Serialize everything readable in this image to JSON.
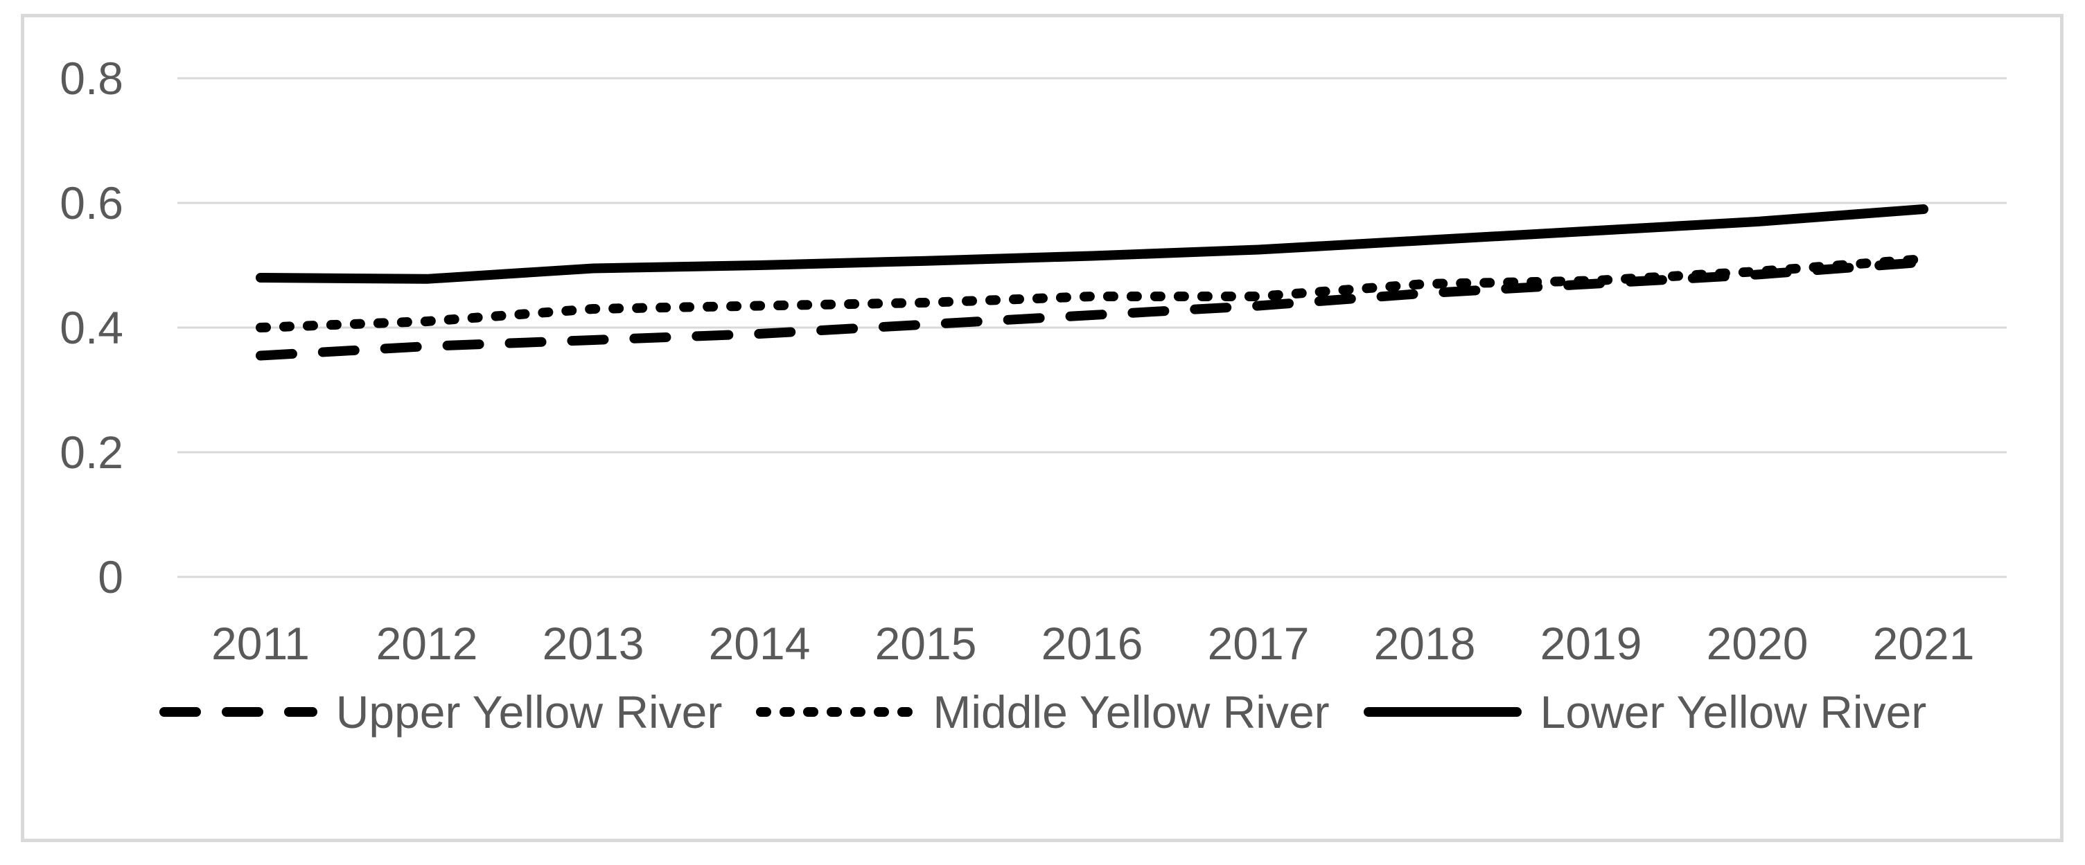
{
  "figure": {
    "background": "#ffffff",
    "border_color": "#d9d9d9"
  },
  "chart_data": {
    "type": "line",
    "title": "",
    "xlabel": "",
    "ylabel": "",
    "categories": [
      "2011",
      "2012",
      "2013",
      "2014",
      "2015",
      "2016",
      "2017",
      "2018",
      "2019",
      "2020",
      "2021"
    ],
    "series": [
      {
        "name": "Upper Yellow River",
        "style": "long-dash",
        "color": "#000000",
        "values": [
          0.355,
          0.37,
          0.38,
          0.39,
          0.405,
          0.42,
          0.435,
          0.455,
          0.47,
          0.485,
          0.505
        ]
      },
      {
        "name": "Middle Yellow River",
        "style": "short-dash",
        "color": "#000000",
        "values": [
          0.4,
          0.41,
          0.43,
          0.435,
          0.44,
          0.45,
          0.45,
          0.47,
          0.475,
          0.49,
          0.51
        ]
      },
      {
        "name": "Lower Yellow River",
        "style": "solid",
        "color": "#000000",
        "values": [
          0.48,
          0.478,
          0.495,
          0.5,
          0.507,
          0.515,
          0.525,
          0.54,
          0.555,
          0.57,
          0.59
        ]
      }
    ],
    "ylim": [
      0,
      0.8
    ],
    "yticks": [
      "0",
      "0.2",
      "0.4",
      "0.6",
      "0.8"
    ],
    "grid": "horizontal",
    "gridline_color": "#d9d9d9",
    "axis_text_color": "#595959",
    "legend_position": "bottom"
  },
  "legend": {
    "items": [
      {
        "label": "Upper Yellow River",
        "style": "long-dash"
      },
      {
        "label": "Middle Yellow River",
        "style": "short-dash"
      },
      {
        "label": "Lower Yellow River",
        "style": "solid"
      }
    ]
  }
}
